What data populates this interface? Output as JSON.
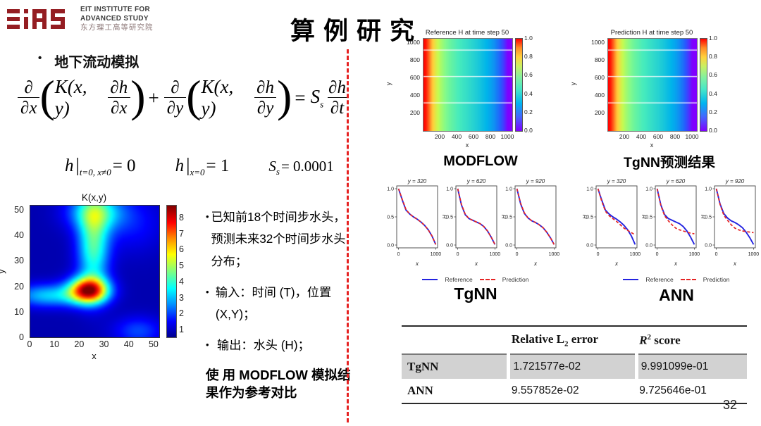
{
  "colors": {
    "reference_line": "#2323e0",
    "prediction_line": "#e62424",
    "divider_red": "#e62222",
    "logo_red": "#941d22",
    "table_highlight": "#d2d2d2"
  },
  "logo": {
    "mark": "EiAS",
    "line1": "EIT INSTITUTE FOR",
    "line2": "ADVANCED STUDY",
    "line3": "东方理工高等研究院"
  },
  "title": "算例研究",
  "page_number": "32",
  "left": {
    "heading": "地下流动模拟",
    "bullet_char": "•",
    "equation": {
      "frac1_num": "∂",
      "frac1_den": "∂x",
      "paren_open": "(",
      "paren_close": ")",
      "K1": "K(x, y)",
      "frac2_num": "∂h",
      "frac2_den": "∂x",
      "plus": "+",
      "frac3_num": "∂",
      "frac3_den": "∂y",
      "K2": "K(x, y)",
      "frac4_num": "∂h",
      "frac4_den": "∂y",
      "equals": "=",
      "S": "S",
      "S_sub": "s",
      "frac5_num": "∂h",
      "frac5_den": "∂t"
    },
    "conditions": {
      "bar": "|",
      "c1_var": "h",
      "c1_sub": "t=0, x≠0",
      "c1_rhs": "= 0",
      "c2_var": "h",
      "c2_sub": "x=0",
      "c2_rhs": "= 1",
      "c3_var": "S",
      "c3_sub": "s",
      "c3_rhs": "= 0.0001"
    },
    "bullets": [
      "已知前18个时间步水头，预测未来32个时间步水头分布；",
      "输入：时间 (T)，位置 (X,Y)；",
      "输出：水头 (H)；"
    ],
    "note": "使 用 MODFLOW 模拟结果作为参考对比"
  },
  "right": {
    "modflow_label": "MODFLOW",
    "tgnn_result_label": "TgNN预测结果",
    "tgnn_label": "TgNN",
    "ann_label": "ANN",
    "legend": {
      "reference": "Reference",
      "prediction": "Prediction"
    }
  },
  "table": {
    "headers": {
      "col1": "",
      "col2_main": "Relative L",
      "col2_sub": "2",
      "col2_rest": " error",
      "col3_main": "R",
      "col3_sup": "2",
      "col3_rest": " score"
    },
    "rows": [
      {
        "name": "TgNN",
        "l2_error": "1.721577e-02",
        "r2_score": "9.991099e-01",
        "highlight": true
      },
      {
        "name": "ANN",
        "l2_error": "9.557852e-02",
        "r2_score": "9.725646e-01",
        "highlight": false
      }
    ]
  },
  "chart_data": [
    {
      "id": "k_field",
      "type": "heatmap",
      "title": "K(x,y)",
      "xlabel": "x",
      "ylabel": "y",
      "xticks": [
        "0",
        "10",
        "20",
        "30",
        "40",
        "50"
      ],
      "yticks": [
        "50",
        "40",
        "30",
        "20",
        "10",
        "0"
      ],
      "colorbar_ticks": [
        "8",
        "7",
        "6",
        "5",
        "4",
        "3",
        "2",
        "1"
      ],
      "colormap": "jet",
      "vmin": 0.5,
      "vmax": 8.8,
      "base": 0.8,
      "grid": 52,
      "blobs": [
        {
          "x": 23,
          "y": 18,
          "sx": 5.5,
          "sy": 3.6,
          "a": 7.0
        },
        {
          "x": 25,
          "y": 36,
          "sx": 4.5,
          "sy": 12,
          "a": 3.4
        },
        {
          "x": 26,
          "y": 49,
          "sx": 8,
          "sy": 5,
          "a": 2.6
        },
        {
          "x": 7,
          "y": 16,
          "sx": 10,
          "sy": 3.2,
          "a": 2.4
        },
        {
          "x": 43,
          "y": 2,
          "sx": 7,
          "sy": 4,
          "a": 1.3
        },
        {
          "x": 41,
          "y": 44,
          "sx": 9,
          "sy": 8,
          "a": 0.8
        }
      ]
    },
    {
      "id": "reference_h",
      "type": "heatmap",
      "title": "Reference H at time step 50",
      "xlabel": "x",
      "ylabel": "y",
      "colormap": "rainbow",
      "xlim": [
        0,
        1050
      ],
      "ylim": [
        0,
        1050
      ],
      "xticks": [
        "200",
        "400",
        "600",
        "800",
        "1000"
      ],
      "yticks": [
        "1000",
        "800",
        "600",
        "400",
        "200"
      ],
      "colorbar_ticks": [
        "1.0",
        "0.8",
        "0.6",
        "0.4",
        "0.2",
        "0.0"
      ],
      "hlines": [
        320,
        620,
        920
      ],
      "profile_x": [
        0,
        30,
        60,
        100,
        150,
        200,
        250,
        300,
        400,
        500,
        600,
        700,
        800,
        850,
        900,
        950,
        1000
      ],
      "profile_h": [
        1.0,
        0.97,
        0.9,
        0.78,
        0.68,
        0.61,
        0.56,
        0.52,
        0.46,
        0.42,
        0.38,
        0.33,
        0.27,
        0.23,
        0.17,
        0.1,
        0.0
      ]
    },
    {
      "id": "prediction_h",
      "type": "heatmap",
      "title": "Prediction H at time step 50",
      "xlabel": "x",
      "ylabel": "y",
      "colormap": "rainbow",
      "xlim": [
        0,
        1050
      ],
      "ylim": [
        0,
        1050
      ],
      "xticks": [
        "200",
        "400",
        "600",
        "800",
        "1000"
      ],
      "yticks": [
        "1000",
        "800",
        "600",
        "400",
        "200"
      ],
      "colorbar_ticks": [
        "1.0",
        "0.8",
        "0.6",
        "0.4",
        "0.2",
        "0.0"
      ],
      "hlines": [
        320,
        620,
        920
      ],
      "profile_x": [
        0,
        30,
        60,
        100,
        150,
        200,
        250,
        300,
        400,
        500,
        600,
        700,
        800,
        850,
        900,
        950,
        1000
      ],
      "profile_h": [
        1.0,
        0.97,
        0.9,
        0.78,
        0.68,
        0.61,
        0.56,
        0.52,
        0.46,
        0.42,
        0.38,
        0.33,
        0.27,
        0.23,
        0.17,
        0.1,
        0.0
      ]
    },
    {
      "id": "tgnn_lines",
      "type": "line",
      "group_label": "TgNN",
      "xlabel": "x",
      "ylabel": "H",
      "yticks": [
        "1.0",
        "0.5",
        "0.0"
      ],
      "ytick_vals": [
        1.0,
        0.5,
        0.0
      ],
      "xticks": [
        "0",
        "1000"
      ],
      "xtick_vals": [
        0,
        1000
      ],
      "ylabel_subplots": [
        1,
        2
      ],
      "legend": [
        "Reference",
        "Prediction"
      ],
      "subplots": [
        {
          "title": "y = 320",
          "x": [
            0,
            100,
            200,
            300,
            400,
            500,
            600,
            700,
            800,
            900,
            1000
          ],
          "reference": [
            1.0,
            0.8,
            0.62,
            0.55,
            0.5,
            0.46,
            0.41,
            0.35,
            0.27,
            0.16,
            0.01
          ],
          "prediction": [
            1.0,
            0.81,
            0.63,
            0.55,
            0.5,
            0.46,
            0.41,
            0.35,
            0.27,
            0.16,
            0.01
          ]
        },
        {
          "title": "y = 620",
          "x": [
            0,
            100,
            200,
            300,
            400,
            500,
            600,
            700,
            800,
            900,
            1000
          ],
          "reference": [
            1.0,
            0.71,
            0.54,
            0.47,
            0.44,
            0.41,
            0.38,
            0.33,
            0.25,
            0.14,
            0.01
          ],
          "prediction": [
            1.0,
            0.72,
            0.55,
            0.47,
            0.44,
            0.41,
            0.38,
            0.33,
            0.25,
            0.14,
            0.01
          ]
        },
        {
          "title": "y = 920",
          "x": [
            0,
            100,
            200,
            300,
            400,
            500,
            600,
            700,
            800,
            900,
            1000
          ],
          "reference": [
            1.0,
            0.73,
            0.56,
            0.48,
            0.43,
            0.4,
            0.36,
            0.31,
            0.23,
            0.13,
            0.01
          ],
          "prediction": [
            1.0,
            0.74,
            0.57,
            0.48,
            0.43,
            0.4,
            0.36,
            0.31,
            0.23,
            0.13,
            0.01
          ]
        }
      ]
    },
    {
      "id": "ann_lines",
      "type": "line",
      "group_label": "ANN",
      "xlabel": "x",
      "ylabel": "H",
      "yticks": [
        "1.0",
        "0.5",
        "0.0"
      ],
      "ytick_vals": [
        1.0,
        0.5,
        0.0
      ],
      "xticks": [
        "0",
        "1000"
      ],
      "xtick_vals": [
        0,
        1000
      ],
      "ylabel_subplots": [
        0,
        1,
        2
      ],
      "legend": [
        "Reference",
        "Prediction"
      ],
      "subplots": [
        {
          "title": "y = 320",
          "x": [
            0,
            100,
            200,
            300,
            400,
            500,
            600,
            700,
            800,
            900,
            1000
          ],
          "reference": [
            1.0,
            0.8,
            0.62,
            0.55,
            0.5,
            0.46,
            0.41,
            0.35,
            0.27,
            0.16,
            0.01
          ],
          "prediction": [
            1.0,
            0.78,
            0.6,
            0.52,
            0.47,
            0.42,
            0.36,
            0.3,
            0.26,
            0.22,
            0.18
          ]
        },
        {
          "title": "y = 620",
          "x": [
            0,
            100,
            200,
            300,
            400,
            500,
            600,
            700,
            800,
            900,
            1000
          ],
          "reference": [
            1.0,
            0.71,
            0.54,
            0.47,
            0.44,
            0.41,
            0.38,
            0.33,
            0.25,
            0.14,
            0.01
          ],
          "prediction": [
            1.0,
            0.7,
            0.52,
            0.43,
            0.36,
            0.3,
            0.27,
            0.25,
            0.23,
            0.21,
            0.2
          ]
        },
        {
          "title": "y = 920",
          "x": [
            0,
            100,
            200,
            300,
            400,
            500,
            600,
            700,
            800,
            900,
            1000
          ],
          "reference": [
            1.0,
            0.73,
            0.56,
            0.48,
            0.43,
            0.4,
            0.36,
            0.31,
            0.23,
            0.13,
            0.01
          ],
          "prediction": [
            1.0,
            0.72,
            0.53,
            0.44,
            0.36,
            0.3,
            0.27,
            0.25,
            0.24,
            0.23,
            0.22
          ]
        }
      ]
    }
  ]
}
